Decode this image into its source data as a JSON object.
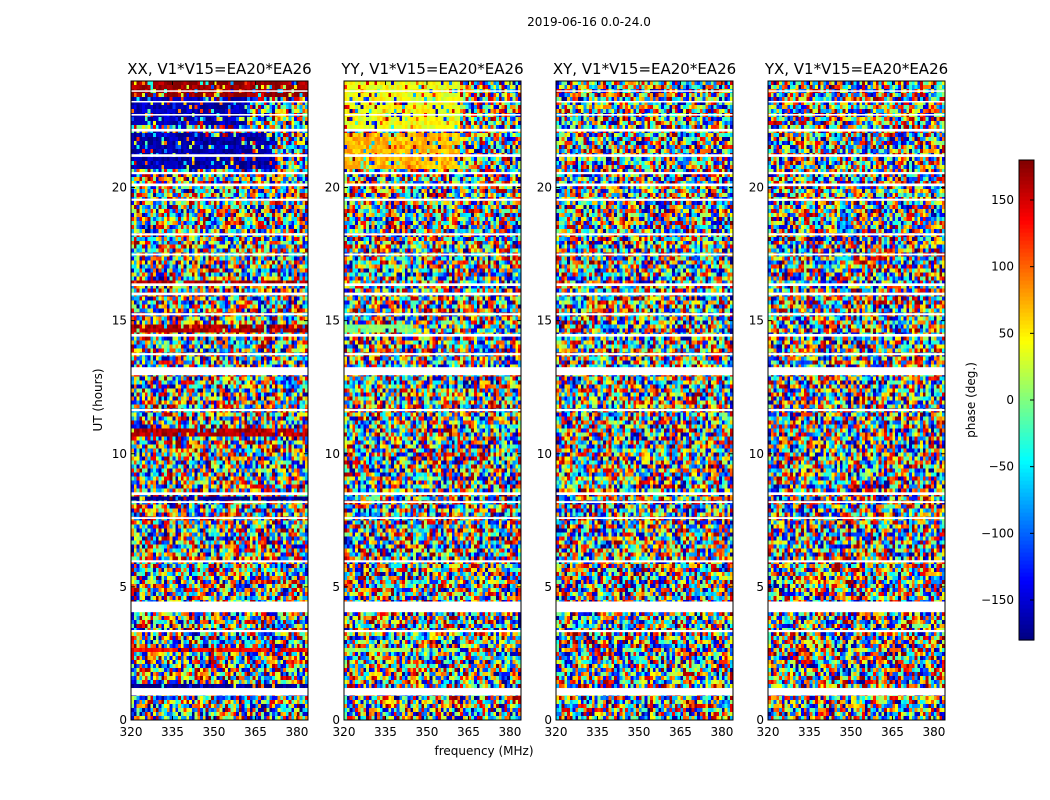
{
  "chart_data": {
    "type": "heatmap",
    "suptitle": "2019-06-16 0.0-24.0",
    "xlabel": "frequency (MHz)",
    "ylabel": "UT (hours)",
    "xlim": [
      320,
      384
    ],
    "ylim": [
      0,
      24
    ],
    "x_ticks": [
      320,
      335,
      350,
      365,
      380
    ],
    "y_ticks": [
      0,
      5,
      10,
      15,
      20
    ],
    "colorbar": {
      "label": "phase (deg.)",
      "range": [
        -180,
        180
      ],
      "ticks": [
        150,
        100,
        50,
        0,
        -50,
        -100,
        -150
      ],
      "tick_labels": [
        "150",
        "100",
        "50",
        "0",
        "−50",
        "−100",
        "−150"
      ],
      "colormap": "jet"
    },
    "flagged_hours": [
      [
        0.92,
        1.2
      ],
      [
        3.3,
        3.38
      ],
      [
        4.05,
        4.45
      ],
      [
        5.92,
        6.0
      ],
      [
        7.55,
        7.62
      ],
      [
        8.15,
        8.22
      ],
      [
        8.45,
        8.55
      ],
      [
        11.6,
        11.68
      ],
      [
        12.95,
        13.25
      ],
      [
        13.7,
        13.78
      ],
      [
        14.4,
        14.5
      ],
      [
        15.2,
        15.28
      ],
      [
        15.95,
        16.05
      ],
      [
        16.3,
        16.4
      ],
      [
        17.45,
        17.52
      ],
      [
        18.2,
        18.28
      ],
      [
        19.5,
        19.58
      ],
      [
        20.05,
        20.15
      ],
      [
        20.5,
        20.58
      ],
      [
        21.15,
        21.25
      ],
      [
        22.1,
        22.2
      ],
      [
        22.7,
        22.76
      ],
      [
        23.2,
        23.25
      ],
      [
        23.6,
        23.65
      ]
    ],
    "panels": [
      {
        "title": "XX, V1*V15=EA20*EA26",
        "coherent_bands": [
          {
            "hours": [
              23.4,
              24.0
            ],
            "freq": [
              320,
              384
            ],
            "phase": 170
          },
          {
            "hours": [
              22.3,
              23.4
            ],
            "freq": [
              320,
              362
            ],
            "phase": -160
          },
          {
            "hours": [
              20.7,
              22.1
            ],
            "freq": [
              320,
              372
            ],
            "phase": -165
          },
          {
            "hours": [
              16.4,
              16.55
            ],
            "freq": [
              320,
              384
            ],
            "phase": 165
          },
          {
            "hours": [
              14.5,
              14.8
            ],
            "freq": [
              320,
              384
            ],
            "phase": 165
          },
          {
            "hours": [
              10.7,
              10.95
            ],
            "freq": [
              320,
              384
            ],
            "phase": 160
          },
          {
            "hours": [
              8.3,
              8.45
            ],
            "freq": [
              320,
              384
            ],
            "phase": -170
          },
          {
            "hours": [
              2.5,
              2.7
            ],
            "freq": [
              320,
              384
            ],
            "phase": 135
          },
          {
            "hours": [
              1.2,
              1.35
            ],
            "freq": [
              320,
              384
            ],
            "phase": -175
          }
        ]
      },
      {
        "title": "YY, V1*V15=EA20*EA26",
        "coherent_bands": [
          {
            "hours": [
              22.2,
              24.0
            ],
            "freq": [
              320,
              362
            ],
            "phase": 40
          },
          {
            "hours": [
              20.7,
              22.1
            ],
            "freq": [
              320,
              362
            ],
            "phase": 70
          },
          {
            "hours": [
              14.5,
              14.8
            ],
            "freq": [
              320,
              345
            ],
            "phase": 0
          },
          {
            "hours": [
              2.5,
              2.7
            ],
            "freq": [
              320,
              360
            ],
            "phase": 10
          }
        ]
      },
      {
        "title": "XY, V1*V15=EA20*EA26",
        "coherent_bands": [
          {
            "hours": [
              2.5,
              2.62
            ],
            "freq": [
              320,
              384
            ],
            "phase": -170
          }
        ]
      },
      {
        "title": "YX, V1*V15=EA20*EA26",
        "coherent_bands": [
          {
            "hours": [
              2.5,
              2.62
            ],
            "freq": [
              320,
              384
            ],
            "phase": -170
          }
        ]
      }
    ]
  }
}
